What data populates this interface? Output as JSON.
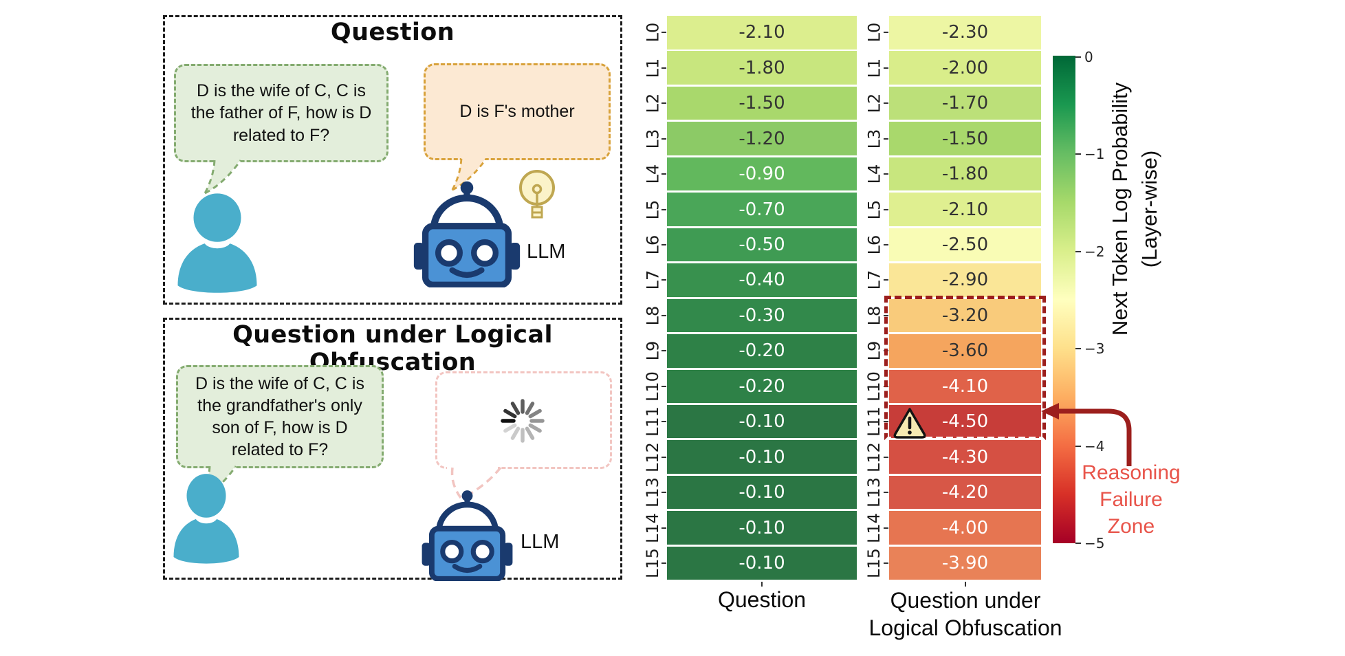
{
  "illustration": {
    "top_panel": {
      "title": "Question",
      "user_bubble": "D is the wife of C, C is the father of F, how is D related to F?",
      "llm_bubble": "D is F's mother",
      "llm_label": "LLM"
    },
    "bottom_panel": {
      "title": "Question under Logical Obfuscation",
      "user_bubble": "D is the wife of C, C is the grandfather's only son of F, how is D related to F?",
      "llm_label": "LLM"
    },
    "spinner_colors": [
      "#111111",
      "#333333",
      "#4a4a4a",
      "#5e5e5e",
      "#717171",
      "#848484",
      "#969696",
      "#a6a6a6",
      "#b4b4b4",
      "#c0c0c0",
      "#cacaca",
      "#d3d3d3"
    ]
  },
  "colors": {
    "panel_border": "#1c1c1c",
    "bubble_green_fill": "#e3eedb",
    "bubble_green_border": "#84ab70",
    "bubble_orange_fill": "#fce9d3",
    "bubble_orange_border": "#d8a23b",
    "bubble_pink_border": "#f2c5c1",
    "user_color": "#4aaecb",
    "robot_body": "#4b92d5",
    "robot_outline": "#1a3a6e",
    "bulb_fill": "#fbf3c9",
    "bulb_stroke": "#bfa751",
    "zone_red": "#9c1f1d",
    "failure_text": "#e8544a"
  },
  "chart_data": {
    "type": "heatmap",
    "rows": [
      "L0",
      "L1",
      "L2",
      "L3",
      "L4",
      "L5",
      "L6",
      "L7",
      "L8",
      "L9",
      "L10",
      "L11",
      "L12",
      "L13",
      "L14",
      "L15"
    ],
    "series": [
      {
        "name": "Question",
        "values": [
          -2.1,
          -1.8,
          -1.5,
          -1.2,
          -0.9,
          -0.7,
          -0.5,
          -0.4,
          -0.3,
          -0.2,
          -0.2,
          -0.1,
          -0.1,
          -0.1,
          -0.1,
          -0.1
        ],
        "labels": [
          "-2.10",
          "-1.80",
          "-1.50",
          "-1.20",
          "-0.90",
          "-0.70",
          "-0.50",
          "-0.40",
          "-0.30",
          "-0.20",
          "-0.20",
          "-0.10",
          "-0.10",
          "-0.10",
          "-0.10",
          "-0.10"
        ],
        "cell_colors": [
          "#dcee8e",
          "#c8e67e",
          "#a9d86c",
          "#8cca66",
          "#62b85d",
          "#4aa658",
          "#3f9b53",
          "#38914e",
          "#32894b",
          "#2e8147",
          "#2e8147",
          "#2b7644",
          "#2b7644",
          "#2b7644",
          "#2b7644",
          "#2b7644"
        ],
        "text_colors": [
          "#333333",
          "#333333",
          "#333333",
          "#333333",
          "#ffffff",
          "#ffffff",
          "#ffffff",
          "#ffffff",
          "#ffffff",
          "#ffffff",
          "#ffffff",
          "#ffffff",
          "#ffffff",
          "#ffffff",
          "#ffffff",
          "#ffffff"
        ]
      },
      {
        "name": "Question under Logical Obfuscation",
        "values": [
          -2.3,
          -2.0,
          -1.7,
          -1.5,
          -1.8,
          -2.1,
          -2.5,
          -2.9,
          -3.2,
          -3.6,
          -4.1,
          -4.5,
          -4.3,
          -4.2,
          -4.0,
          -3.9
        ],
        "labels": [
          "-2.30",
          "-2.00",
          "-1.70",
          "-1.50",
          "-1.80",
          "-2.10",
          "-2.50",
          "-2.90",
          "-3.20",
          "-3.60",
          "-4.10",
          "-4.50",
          "-4.30",
          "-4.20",
          "-4.00",
          "-3.90"
        ],
        "cell_colors": [
          "#edf6a3",
          "#d9ed8a",
          "#bce079",
          "#a9d86c",
          "#c8e67e",
          "#dfef90",
          "#f9fcb5",
          "#fae697",
          "#f9cb7b",
          "#f5a55e",
          "#e06249",
          "#c73d39",
          "#d55043",
          "#d75747",
          "#e67551",
          "#e98258"
        ],
        "text_colors": [
          "#333333",
          "#333333",
          "#333333",
          "#333333",
          "#333333",
          "#333333",
          "#333333",
          "#333333",
          "#333333",
          "#333333",
          "#ffffff",
          "#ffffff",
          "#ffffff",
          "#ffffff",
          "#ffffff",
          "#ffffff"
        ]
      }
    ],
    "x_labels": {
      "question": "Question",
      "obfuscated_line1": "Question under",
      "obfuscated_line2": "Logical Obfuscation"
    },
    "colorbar": {
      "title_line1": "Next Token Log Probability",
      "title_line2": "(Layer-wise)",
      "ticks": [
        "0",
        "−1",
        "−2",
        "−3",
        "−4",
        "−5"
      ],
      "range": [
        0,
        -5
      ],
      "colormap": "RdYlGn",
      "gradient": [
        "#006837",
        "#1a9850",
        "#66bd63",
        "#a6d96a",
        "#d9ef8b",
        "#ffffbf",
        "#fee08b",
        "#fdae61",
        "#f46d43",
        "#d73027",
        "#a50026"
      ]
    },
    "annotations": {
      "zone_rows": [
        "L8",
        "L11"
      ],
      "warning_row": "L11",
      "failure_line1": "Reasoning",
      "failure_line2": "Failure",
      "failure_line3": "Zone"
    }
  }
}
